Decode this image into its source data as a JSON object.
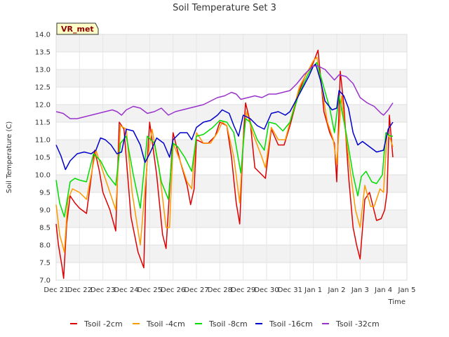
{
  "chart_data": {
    "type": "line",
    "title": "Soil Temperature Set 3",
    "xlabel": "Time",
    "ylabel": "Soil Temperature (C)",
    "annotation": "VR_met",
    "xlim": [
      0,
      15
    ],
    "ylim": [
      7.0,
      14.0
    ],
    "x_ticks": [
      {
        "value": 0,
        "label": "Dec 21"
      },
      {
        "value": 1,
        "label": "Dec 22"
      },
      {
        "value": 2,
        "label": "Dec 23"
      },
      {
        "value": 3,
        "label": "Dec 24"
      },
      {
        "value": 4,
        "label": "Dec 25"
      },
      {
        "value": 5,
        "label": "Dec 26"
      },
      {
        "value": 6,
        "label": "Dec 27"
      },
      {
        "value": 7,
        "label": "Dec 28"
      },
      {
        "value": 8,
        "label": "Dec 29"
      },
      {
        "value": 9,
        "label": "Dec 30"
      },
      {
        "value": 10,
        "label": "Dec 31"
      },
      {
        "value": 11,
        "label": "Jan 1"
      },
      {
        "value": 12,
        "label": "Jan 2"
      },
      {
        "value": 13,
        "label": "Jan 3"
      },
      {
        "value": 14,
        "label": "Jan 4"
      },
      {
        "value": 15,
        "label": "Jan 5"
      }
    ],
    "y_ticks": [
      {
        "value": 7.0,
        "label": "7.0"
      },
      {
        "value": 7.5,
        "label": "7.5"
      },
      {
        "value": 8.0,
        "label": "8.0"
      },
      {
        "value": 8.5,
        "label": "8.5"
      },
      {
        "value": 9.0,
        "label": "9.0"
      },
      {
        "value": 9.5,
        "label": "9.5"
      },
      {
        "value": 10.0,
        "label": "10.0"
      },
      {
        "value": 10.5,
        "label": "10.5"
      },
      {
        "value": 11.0,
        "label": "11.0"
      },
      {
        "value": 11.5,
        "label": "11.5"
      },
      {
        "value": 12.0,
        "label": "12.0"
      },
      {
        "value": 12.5,
        "label": "12.5"
      },
      {
        "value": 13.0,
        "label": "13.0"
      },
      {
        "value": 13.5,
        "label": "13.5"
      },
      {
        "value": 14.0,
        "label": "14.0"
      }
    ],
    "series": [
      {
        "name": "Tsoil -2cm",
        "color": "#dd0000",
        "x": [
          0.0,
          0.1,
          0.25,
          0.32,
          0.45,
          0.6,
          0.8,
          1.0,
          1.3,
          1.65,
          1.85,
          2.0,
          2.3,
          2.55,
          2.7,
          2.9,
          3.2,
          3.5,
          3.75,
          3.85,
          4.0,
          4.3,
          4.55,
          4.7,
          4.8,
          5.0,
          5.3,
          5.6,
          5.75,
          5.9,
          6.0,
          6.3,
          6.5,
          6.8,
          7.0,
          7.3,
          7.5,
          7.7,
          7.85,
          8.0,
          8.1,
          8.3,
          8.5,
          8.8,
          8.95,
          9.2,
          9.5,
          9.75,
          10.0,
          10.4,
          10.7,
          10.9,
          11.0,
          11.2,
          11.45,
          11.7,
          11.9,
          12.0,
          12.15,
          12.3,
          12.5,
          12.7,
          12.85,
          13.0,
          13.2,
          13.4,
          13.7,
          13.9,
          14.05,
          14.15,
          14.25,
          14.4
        ],
        "y": [
          8.6,
          8.0,
          7.4,
          7.05,
          8.6,
          9.4,
          9.2,
          9.05,
          8.9,
          10.7,
          10.1,
          9.5,
          9.0,
          8.4,
          11.5,
          11.3,
          8.8,
          7.8,
          7.35,
          9.9,
          11.5,
          10.0,
          8.3,
          7.9,
          9.0,
          11.2,
          10.4,
          9.7,
          9.15,
          9.6,
          11.0,
          10.9,
          10.9,
          11.1,
          11.5,
          11.4,
          10.5,
          9.2,
          8.6,
          11.0,
          12.05,
          11.5,
          10.2,
          10.0,
          9.9,
          11.3,
          10.85,
          10.85,
          11.4,
          12.4,
          12.9,
          13.05,
          13.2,
          13.55,
          11.8,
          11.2,
          10.9,
          9.8,
          12.95,
          12.0,
          10.0,
          8.5,
          8.0,
          7.6,
          9.3,
          9.5,
          8.7,
          8.75,
          9.0,
          9.5,
          11.7,
          10.5
        ]
      },
      {
        "name": "Tsoil -4cm",
        "color": "#ff9900",
        "x": [
          0.0,
          0.15,
          0.35,
          0.5,
          0.7,
          1.0,
          1.3,
          1.7,
          1.9,
          2.2,
          2.55,
          2.75,
          3.0,
          3.25,
          3.6,
          3.9,
          4.1,
          4.4,
          4.7,
          4.85,
          5.0,
          5.3,
          5.6,
          5.8,
          6.0,
          6.3,
          6.6,
          6.9,
          7.1,
          7.3,
          7.6,
          7.85,
          8.0,
          8.15,
          8.4,
          8.8,
          8.95,
          9.2,
          9.5,
          9.8,
          10.0,
          10.4,
          10.8,
          11.0,
          11.15,
          11.35,
          11.6,
          11.85,
          12.0,
          12.2,
          12.5,
          12.8,
          13.0,
          13.2,
          13.45,
          13.6,
          13.85,
          14.0,
          14.15,
          14.3,
          14.4
        ],
        "y": [
          9.15,
          8.3,
          7.8,
          9.3,
          9.6,
          9.5,
          9.3,
          10.7,
          10.3,
          9.7,
          9.0,
          11.4,
          11.3,
          9.5,
          8.0,
          10.4,
          11.3,
          10.2,
          8.5,
          8.5,
          10.9,
          10.4,
          9.8,
          9.6,
          11.2,
          10.9,
          10.9,
          11.2,
          11.5,
          11.4,
          10.5,
          9.2,
          11.0,
          11.8,
          11.2,
          10.5,
          10.2,
          11.35,
          11.0,
          11.0,
          11.5,
          12.5,
          13.0,
          13.25,
          13.35,
          12.5,
          11.5,
          11.0,
          10.3,
          12.25,
          10.5,
          9.0,
          8.5,
          9.7,
          9.1,
          9.1,
          9.6,
          9.5,
          11.2,
          11.0,
          10.8
        ]
      },
      {
        "name": "Tsoil -8cm",
        "color": "#00dd00",
        "x": [
          0.0,
          0.15,
          0.35,
          0.6,
          0.8,
          1.0,
          1.3,
          1.6,
          1.9,
          2.2,
          2.55,
          2.75,
          3.0,
          3.3,
          3.6,
          3.9,
          4.2,
          4.5,
          4.8,
          5.0,
          5.2,
          5.5,
          5.8,
          6.0,
          6.3,
          6.7,
          7.0,
          7.3,
          7.6,
          7.9,
          8.1,
          8.3,
          8.6,
          8.9,
          9.1,
          9.4,
          9.7,
          10.0,
          10.4,
          10.8,
          11.0,
          11.15,
          11.4,
          11.7,
          11.9,
          12.1,
          12.4,
          12.7,
          12.9,
          13.05,
          13.25,
          13.5,
          13.7,
          13.95,
          14.1,
          14.3,
          14.4
        ],
        "y": [
          9.85,
          9.2,
          8.8,
          9.8,
          9.9,
          9.85,
          9.8,
          10.6,
          10.4,
          10.0,
          9.7,
          10.9,
          11.1,
          10.0,
          9.05,
          11.1,
          10.9,
          9.8,
          9.3,
          10.9,
          10.8,
          10.5,
          10.1,
          11.1,
          11.15,
          11.35,
          11.55,
          11.5,
          11.2,
          10.05,
          11.6,
          11.5,
          11.0,
          10.7,
          11.5,
          11.45,
          11.25,
          11.5,
          12.35,
          12.9,
          13.1,
          13.2,
          12.6,
          11.9,
          11.2,
          12.25,
          11.2,
          10.0,
          9.4,
          9.95,
          10.1,
          9.8,
          9.75,
          10.0,
          11.2,
          11.1,
          11.1
        ]
      },
      {
        "name": "Tsoil -16cm",
        "color": "#0000cc",
        "x": [
          0.0,
          0.2,
          0.4,
          0.6,
          0.9,
          1.2,
          1.5,
          1.7,
          1.9,
          2.1,
          2.35,
          2.6,
          2.8,
          3.0,
          3.3,
          3.6,
          3.8,
          4.0,
          4.3,
          4.6,
          4.85,
          5.0,
          5.3,
          5.6,
          5.8,
          6.0,
          6.3,
          6.6,
          6.9,
          7.1,
          7.4,
          7.6,
          7.8,
          8.0,
          8.3,
          8.6,
          8.9,
          9.2,
          9.5,
          9.8,
          10.0,
          10.4,
          10.8,
          11.0,
          11.1,
          11.3,
          11.5,
          11.8,
          12.0,
          12.1,
          12.3,
          12.5,
          12.7,
          12.9,
          13.1,
          13.4,
          13.7,
          14.0,
          14.2,
          14.4
        ],
        "y": [
          10.85,
          10.55,
          10.15,
          10.4,
          10.6,
          10.65,
          10.6,
          10.7,
          11.05,
          11.0,
          10.85,
          10.6,
          10.65,
          11.3,
          11.25,
          10.85,
          10.35,
          10.6,
          11.05,
          10.9,
          10.5,
          11.0,
          11.2,
          11.2,
          11.0,
          11.35,
          11.5,
          11.55,
          11.7,
          11.85,
          11.75,
          11.4,
          11.1,
          11.7,
          11.6,
          11.4,
          11.3,
          11.75,
          11.8,
          11.7,
          11.8,
          12.3,
          12.8,
          13.1,
          13.15,
          12.7,
          12.1,
          11.85,
          11.9,
          12.4,
          12.25,
          11.9,
          11.2,
          10.85,
          10.95,
          10.8,
          10.65,
          10.7,
          11.3,
          11.5
        ]
      },
      {
        "name": "Tsoil -32cm",
        "color": "#9933cc",
        "x": [
          0.0,
          0.3,
          0.6,
          0.9,
          1.2,
          1.5,
          1.8,
          2.1,
          2.4,
          2.6,
          2.8,
          3.0,
          3.3,
          3.6,
          3.9,
          4.2,
          4.5,
          4.8,
          5.1,
          5.4,
          5.7,
          6.0,
          6.3,
          6.6,
          6.9,
          7.2,
          7.5,
          7.7,
          7.9,
          8.2,
          8.5,
          8.8,
          9.1,
          9.4,
          9.7,
          10.0,
          10.3,
          10.6,
          10.9,
          11.0,
          11.2,
          11.5,
          11.7,
          11.9,
          12.1,
          12.4,
          12.7,
          13.0,
          13.3,
          13.6,
          13.9,
          14.0,
          14.2,
          14.4
        ],
        "y": [
          11.8,
          11.75,
          11.6,
          11.6,
          11.65,
          11.7,
          11.75,
          11.8,
          11.85,
          11.8,
          11.7,
          11.85,
          11.95,
          11.9,
          11.75,
          11.8,
          11.9,
          11.7,
          11.8,
          11.85,
          11.9,
          11.95,
          12.0,
          12.1,
          12.2,
          12.25,
          12.35,
          12.3,
          12.15,
          12.2,
          12.25,
          12.2,
          12.3,
          12.3,
          12.35,
          12.4,
          12.6,
          12.85,
          13.05,
          13.1,
          13.1,
          13.0,
          12.85,
          12.7,
          12.85,
          12.8,
          12.6,
          12.2,
          12.05,
          11.95,
          11.75,
          11.7,
          11.85,
          12.05
        ]
      }
    ]
  }
}
